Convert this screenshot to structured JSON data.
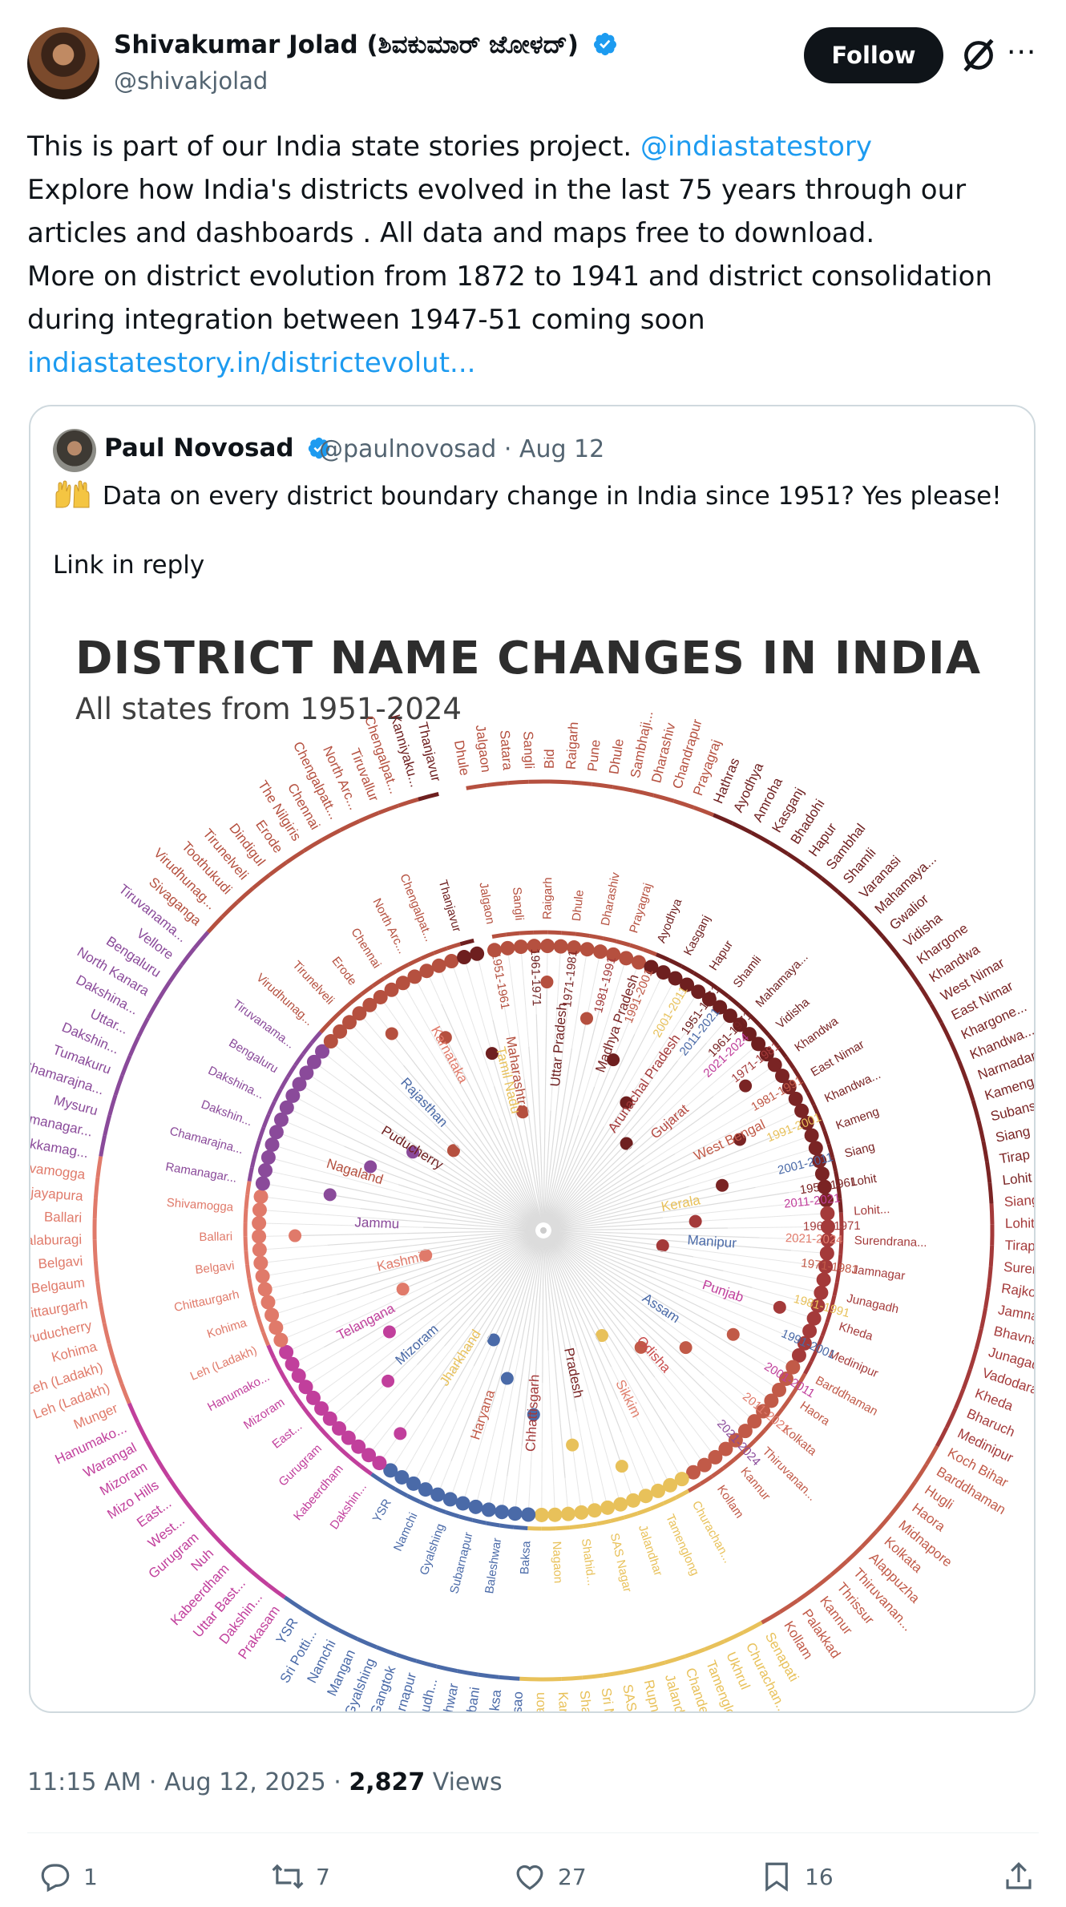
{
  "author": {
    "name": "Shivakumar Jolad (ಶಿವಕುಮಾರ್ ಜೋಳದ್)",
    "handle": "@shivakjolad",
    "follow_label": "Follow",
    "more_label": "···"
  },
  "tweet": {
    "line1_text": "This is part of our India state stories project. ",
    "line1_mention": "@indiastatestory",
    "line2": "Explore how India's districts evolved in the last 75 years through our",
    "line3": "articles and dashboards . All data and maps free to download.",
    "line4": "More on district evolution from 1872 to 1941 and district consolidation",
    "line5": "during integration between 1947-51 coming soon",
    "link": "indiastatestory.in/districtevolut..."
  },
  "quote": {
    "name": "Paul Novosad",
    "handle_date": "@paulnovosad · Aug 12",
    "text": "Data on every district boundary change in India since 1951? Yes please!",
    "link_in_reply": "Link in reply"
  },
  "chart_data": {
    "type": "radial-tree",
    "title": "DISTRICT NAME CHANGES IN INDIA",
    "subtitle": "All states from 1951-2024",
    "state_colors": {
      "Maharashtra": "#b5503f",
      "Uttar Pradesh": "#6e1f1f",
      "Madhya Pradesh": "#7a2424",
      "Arunachal Pradesh": "#a43a3a",
      "Gujarat": "#b54a42",
      "West Bengal": "#c15a48",
      "Kerala": "#e8c15a",
      "Manipur": "#4a6aa8",
      "Punjab": "#c13f9c",
      "Assam": "#4a6aa8",
      "Odisha": "#c94c4c",
      "Sikkim": "#e0806e",
      "Tamil Nadu": "#e8c15a",
      "Karnataka": "#e07a6a",
      "Rajasthan": "#4a6aa8"
    },
    "branch_labels": [
      "Maharashtra",
      "Uttar Pradesh",
      "Madhya Pradesh",
      "Arunachal Pradesh",
      "Gujarat",
      "West Bengal",
      "Kerala",
      "Manipur",
      "Punjab",
      "Assam",
      "Odisha",
      "Sikkim",
      "Pradesh",
      "Chhattisgarh",
      "Haryana",
      "Jharkhand",
      "Mizoram",
      "Telangana",
      "Kashmir",
      "Jammu",
      "Nagaland",
      "Puducherry",
      "Rajasthan",
      "Karnataka",
      "Tamil Nadu"
    ],
    "period_labels": [
      "1951-1961",
      "1961-1971",
      "1971-1981",
      "1981-1991",
      "1991-2001",
      "2001-2011",
      "2011-2021",
      "2021-2024"
    ],
    "outer_names": [
      "Dhule",
      "Jalgaon",
      "Satara",
      "Sangli",
      "Bid",
      "Raigarh",
      "Pune",
      "Dhule",
      "Sambhaji...",
      "Dharashiv",
      "Chandrapur",
      "Prayagraj",
      "Hathras",
      "Ayodhya",
      "Amroha",
      "Kasganj",
      "Bhadohi",
      "Hapur",
      "Sambhal",
      "Shamli",
      "Varanasi",
      "Mahamaya...",
      "Gwalior",
      "Vidisha",
      "Khargone",
      "Khandwa",
      "West Nimar",
      "East Nimar",
      "Khargone...",
      "Khandwa...",
      "Narmadapu...",
      "Kameng",
      "Subansiri",
      "Siang",
      "Tirap",
      "Lohit",
      "Siang...",
      "Lohit...",
      "Tirap...",
      "Surendrana...",
      "Rajkot",
      "Jamnagar",
      "Bhavnagar",
      "Junagadh",
      "Vadodara",
      "Kheda",
      "Bharuch",
      "Medinipur",
      "Koch Bihar",
      "Barddhaman",
      "Hugli",
      "Haora",
      "Midnapore",
      "Kolkata",
      "Alappuzha",
      "Thiruvanan...",
      "Thrissur",
      "Kannur",
      "Palakkad",
      "Kollam",
      "Senapati",
      "Churachan...",
      "Ukhrul",
      "Tamenglong",
      "Chandel",
      "Jalandhar",
      "Rupnagar",
      "SAS Nagar",
      "Sri Muktsar...",
      "Shahid...",
      "Karbi...",
      "Nagaon",
      "Dima Hasao",
      "Baksa",
      "Phulbani",
      "Baleshwar",
      "Baudh...",
      "Subarnapur",
      "Gangtok",
      "Gyalshing",
      "Mangan",
      "Namchi",
      "Sri Potti...",
      "YSR",
      "Prakasam",
      "Dakshin...",
      "Uttar Bast...",
      "Kabeerdham",
      "Nuh",
      "Gurugram",
      "West...",
      "East...",
      "Mizo Hills",
      "Mizoram",
      "Warangal",
      "Hanumako...",
      "Munger",
      "Leh (Ladakh)",
      "Leh (Ladakh)",
      "Kohima",
      "Puducherry",
      "Chittaurgarh",
      "Belgaum",
      "Belgavi",
      "Kalaburagi",
      "Ballari",
      "Vijayapura",
      "Shivamogga",
      "Chikkamag...",
      "Ramanagar...",
      "Mysuru",
      "Chamarajna...",
      "Tumakuru",
      "Dakshin...",
      "Uttar...",
      "Dakshina...",
      "North Kanara",
      "Bengaluru",
      "Vellore",
      "Tiruvanama...",
      "Sivaganga",
      "Virudhunag...",
      "Toothukudi",
      "Tirunelveli",
      "Dindigul",
      "Erode",
      "The Nilgiris",
      "Chennai",
      "Chengalpatt...",
      "North Arc...",
      "Tiruvallur",
      "Chengalpat...",
      "Kanniyaku...",
      "Thanjavur"
    ]
  },
  "timestamp": {
    "time_date": "11:15 AM · Aug 12, 2025 · ",
    "views_count": "2,827",
    "views_label": " Views"
  },
  "actions": {
    "replies": "1",
    "reposts": "7",
    "likes": "27",
    "bookmarks": "16"
  }
}
